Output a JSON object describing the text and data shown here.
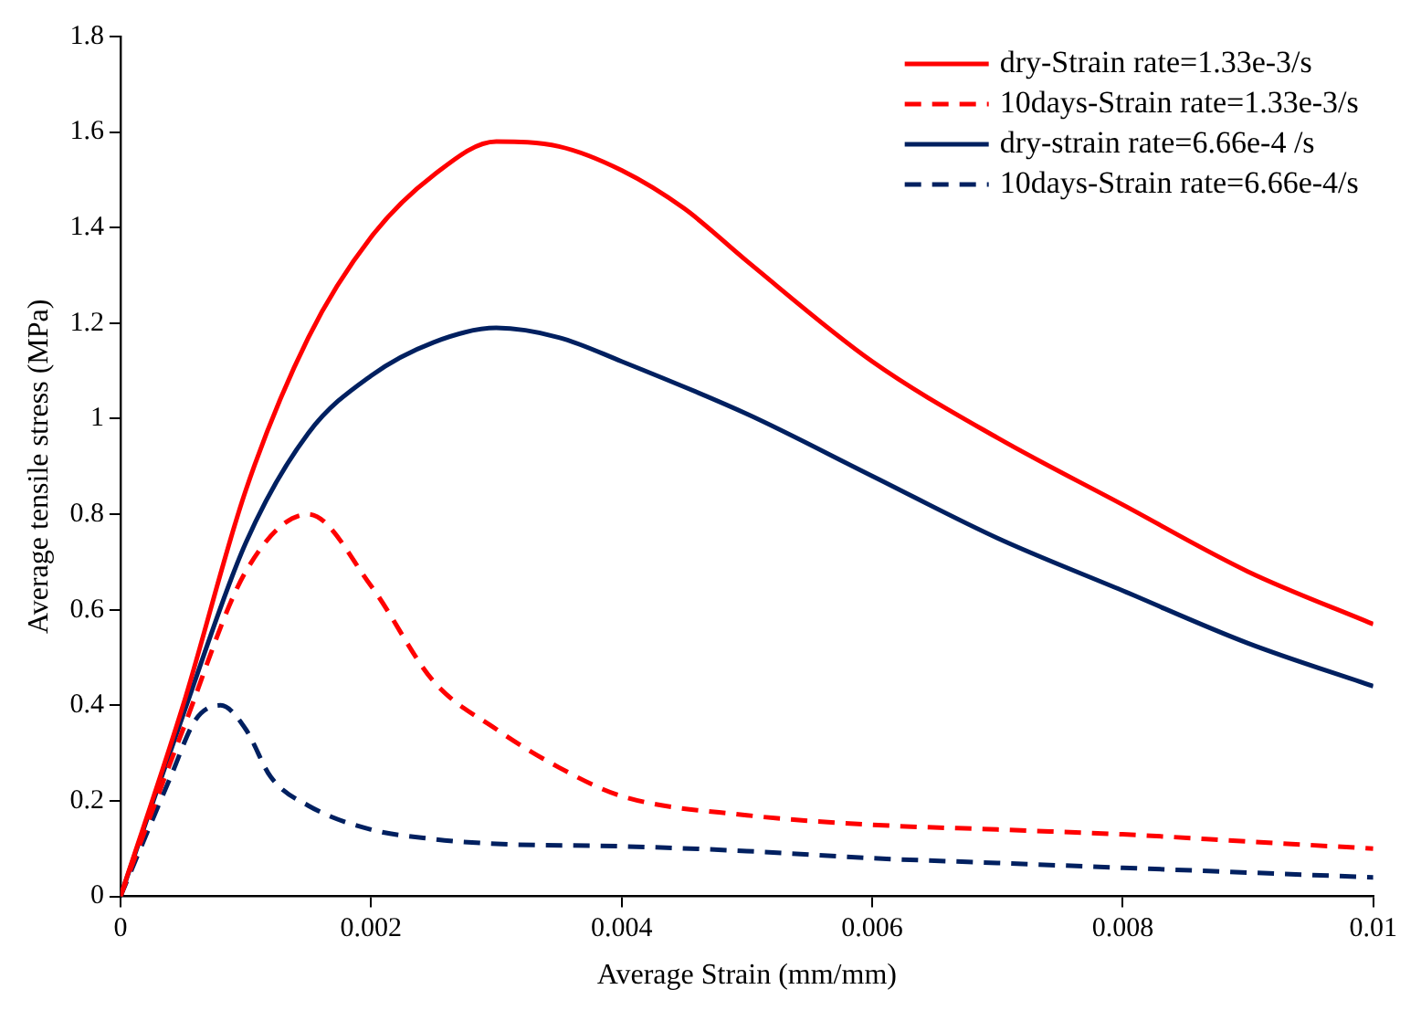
{
  "chart_data": {
    "type": "line",
    "xlabel": "Average Strain (mm/mm)",
    "ylabel": "Average tensile stress (MPa)",
    "xlim": [
      0,
      0.01
    ],
    "xticks": [
      0,
      0.002,
      0.004,
      0.006,
      0.008,
      0.01
    ],
    "ylim": [
      0,
      1.8
    ],
    "yticks": [
      0,
      0.2,
      0.4,
      0.6,
      0.8,
      1,
      1.2,
      1.4,
      1.6,
      1.8
    ],
    "grid": false,
    "legend": "top right",
    "marker": "none",
    "series": [
      {
        "name": "dry-Strain rate=1.33e-3/s",
        "color": "#ff0000",
        "line_style": "solid",
        "x": [
          0,
          0.0005,
          0.001,
          0.0015,
          0.002,
          0.0025,
          0.003,
          0.0035,
          0.004,
          0.0045,
          0.005,
          0.006,
          0.007,
          0.008,
          0.009,
          0.01
        ],
        "values": [
          0,
          0.4,
          0.85,
          1.17,
          1.38,
          1.51,
          1.58,
          1.57,
          1.52,
          1.44,
          1.33,
          1.12,
          0.96,
          0.82,
          0.68,
          0.57
        ]
      },
      {
        "name": "10days-Strain rate=1.33e-3/s",
        "color": "#ff0000",
        "line_style": "dashed",
        "x": [
          0,
          0.0005,
          0.001,
          0.0015,
          0.002,
          0.0025,
          0.003,
          0.0035,
          0.004,
          0.005,
          0.006,
          0.007,
          0.008,
          0.009,
          0.01
        ],
        "values": [
          0,
          0.35,
          0.68,
          0.8,
          0.65,
          0.45,
          0.35,
          0.27,
          0.21,
          0.17,
          0.15,
          0.14,
          0.13,
          0.115,
          0.1
        ]
      },
      {
        "name": "dry-strain rate=6.66e-4 /s",
        "color": "#002060",
        "line_style": "solid",
        "x": [
          0,
          0.0005,
          0.001,
          0.0015,
          0.002,
          0.0025,
          0.003,
          0.0035,
          0.004,
          0.005,
          0.006,
          0.007,
          0.008,
          0.009,
          0.01
        ],
        "values": [
          0,
          0.38,
          0.74,
          0.97,
          1.09,
          1.16,
          1.19,
          1.17,
          1.12,
          1.01,
          0.88,
          0.75,
          0.64,
          0.53,
          0.44
        ]
      },
      {
        "name": "10days-Strain rate=6.66e-4/s",
        "color": "#002060",
        "line_style": "dashed",
        "x": [
          0,
          0.0004,
          0.0006,
          0.0008,
          0.001,
          0.0012,
          0.0015,
          0.002,
          0.0025,
          0.003,
          0.004,
          0.005,
          0.006,
          0.007,
          0.008,
          0.009,
          0.01
        ],
        "values": [
          0,
          0.25,
          0.37,
          0.4,
          0.35,
          0.25,
          0.19,
          0.14,
          0.12,
          0.11,
          0.105,
          0.095,
          0.08,
          0.07,
          0.06,
          0.05,
          0.04
        ]
      }
    ]
  }
}
